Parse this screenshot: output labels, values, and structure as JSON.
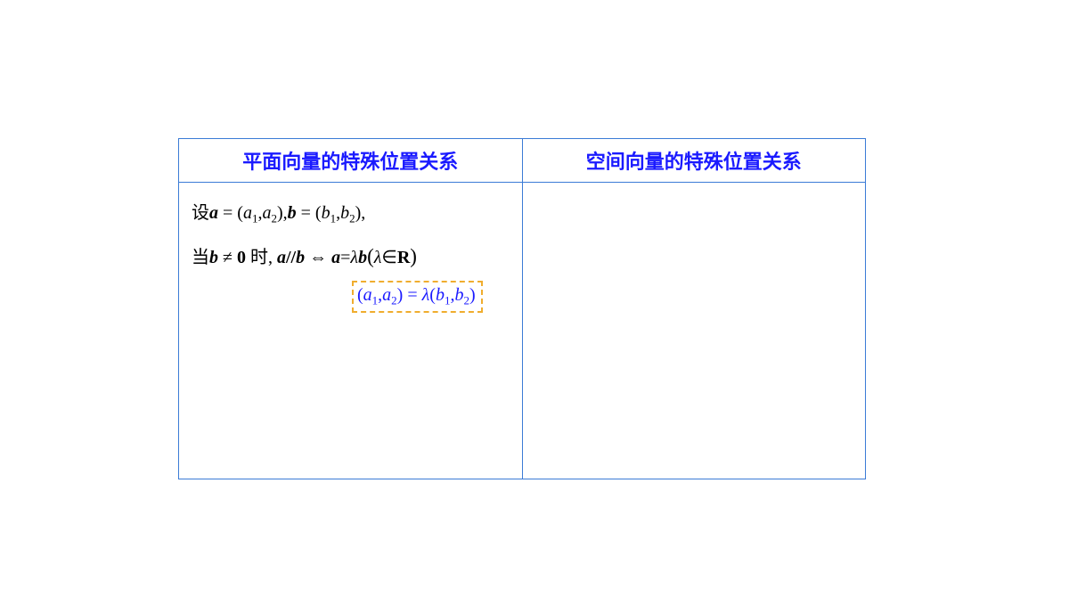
{
  "table": {
    "border_color": "#3b7bd6",
    "header_text_color": "#1a1aff",
    "highlight_border_color": "#f0ad2e",
    "highlight_text_color": "#1a1aff",
    "headers": {
      "left": "平面向量的特殊位置关系",
      "right": "空间向量的特殊位置关系"
    },
    "left_cell": {
      "line1_prefix": "设",
      "a": "a",
      "eq": "=",
      "open": "(",
      "a1": "a",
      "sub1": "1",
      "comma": ",",
      "a2": "a",
      "sub2": "2",
      "close": ")",
      "b": "b",
      "b1": "b",
      "b2": "b",
      "line2_prefix": "当",
      "neq": "≠",
      "zero": "0",
      "shi": "时",
      "parallel": "//",
      "iff": "⇔",
      "lambda": "λ",
      "in": "∈",
      "R": "R",
      "boxed": {
        "open": "(",
        "a1": "a",
        "s1": "1",
        "c": ",",
        "a2": "a",
        "s2": "2",
        "close": ")",
        "eq": "=",
        "lam": "λ",
        "open2": "(",
        "b1": "b",
        "b2": "b",
        "close2": ")"
      }
    }
  }
}
